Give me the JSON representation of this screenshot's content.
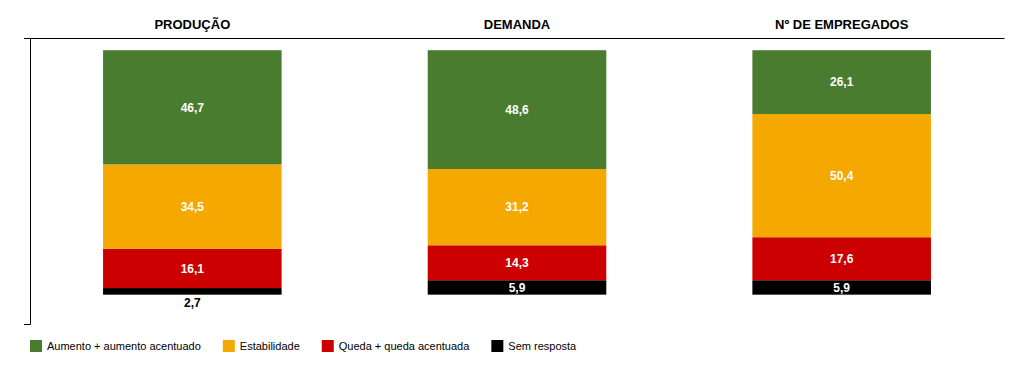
{
  "chart_data": {
    "type": "bar",
    "stacked": true,
    "categories": [
      "PRODUÇÃO",
      "DEMANDA",
      "Nº DE EMPREGADOS"
    ],
    "series": [
      {
        "name": "Sem resposta",
        "color": "#000000",
        "values": [
          2.7,
          5.9,
          5.9
        ],
        "value_labels": [
          "2,7",
          "5,9",
          "5,9"
        ]
      },
      {
        "name": "Queda + queda acentuada",
        "color": "#cc0000",
        "values": [
          16.1,
          14.3,
          17.6
        ],
        "value_labels": [
          "16,1",
          "14,3",
          "17,6"
        ]
      },
      {
        "name": "Estabilidade",
        "color": "#f5a800",
        "values": [
          34.5,
          31.2,
          50.4
        ],
        "value_labels": [
          "34,5",
          "31,2",
          "50,4"
        ]
      },
      {
        "name": "Aumento + aumento acentuado",
        "color": "#4a7c2f",
        "values": [
          46.7,
          48.6,
          26.1
        ],
        "value_labels": [
          "46,7",
          "48,6",
          "26,1"
        ]
      }
    ],
    "ylim": [
      -12,
      105
    ],
    "grid": false,
    "data_labels": true,
    "tick_labels": "x",
    "legend": "bottom"
  }
}
